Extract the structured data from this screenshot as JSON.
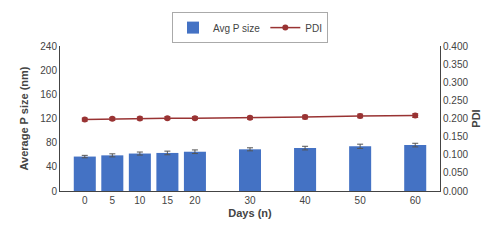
{
  "chart_data": {
    "type": "bar",
    "x": [
      0,
      5,
      10,
      15,
      20,
      30,
      40,
      50,
      60
    ],
    "xlabel": "Days (n)",
    "ylabel": "Average P size (nm)",
    "y2label": "PDI",
    "series": [
      {
        "name": "Avg P size",
        "type": "bar",
        "color": "#4472c4",
        "values": [
          57,
          59,
          62,
          63,
          65,
          69,
          71,
          74,
          76
        ],
        "errors": [
          2.0,
          2.5,
          2.5,
          3.0,
          3.0,
          2.5,
          3.0,
          3.5,
          3.0
        ]
      },
      {
        "name": "PDI",
        "type": "line",
        "axis": "y2",
        "color": "#993333",
        "marker": "circle",
        "line_style": "solid",
        "values": [
          0.197,
          0.199,
          0.2,
          0.201,
          0.201,
          0.202,
          0.204,
          0.207,
          0.208
        ],
        "errors": [
          0.004,
          0.004,
          0.004,
          0.004,
          0.004,
          0.004,
          0.005,
          0.005,
          0.005
        ]
      }
    ],
    "xlim": [
      -4.5,
      64.5
    ],
    "xticks": [
      0,
      5,
      10,
      15,
      20,
      30,
      40,
      50,
      60
    ],
    "ylim": [
      0,
      240
    ],
    "yticks": [
      0,
      40,
      80,
      120,
      160,
      200,
      240
    ],
    "y2lim": [
      0.0,
      0.4
    ],
    "y2ticks": [
      {
        "value": 0.0,
        "label": "0.000"
      },
      {
        "value": 0.05,
        "label": "0.050"
      },
      {
        "value": 0.1,
        "label": "0.100"
      },
      {
        "value": 0.15,
        "label": "0.150"
      },
      {
        "value": 0.2,
        "label": "0.200"
      },
      {
        "value": 0.25,
        "label": "0.250"
      },
      {
        "value": 0.3,
        "label": "0.300"
      },
      {
        "value": 0.35,
        "label": "0.350"
      },
      {
        "value": 0.4,
        "label": "0.400"
      }
    ],
    "legend": "top",
    "grid": false
  }
}
